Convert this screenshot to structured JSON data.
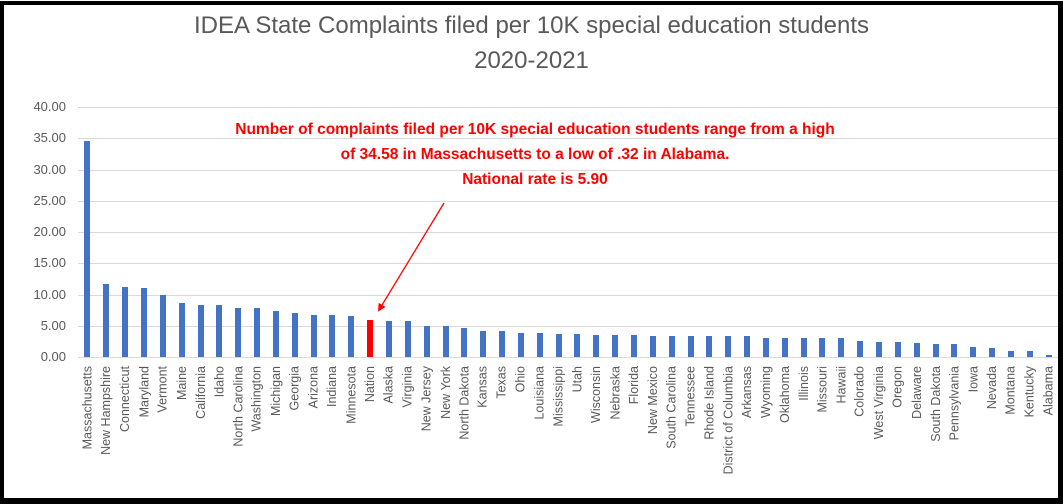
{
  "chart_data": {
    "type": "bar",
    "title": "IDEA State Complaints filed per 10K special education students",
    "subtitle": "2020-2021",
    "xlabel": "",
    "ylabel": "",
    "ylim": [
      0,
      40
    ],
    "yticks": [
      "40.00",
      "35.00",
      "30.00",
      "25.00",
      "20.00",
      "15.00",
      "10.00",
      "5.00",
      "0.00"
    ],
    "grid": true,
    "legend": "none",
    "categories": [
      "Massachusetts",
      "New Hampshire",
      "Connecticut",
      "Maryland",
      "Vermont",
      "Maine",
      "California",
      "Idaho",
      "North Carolina",
      "Washington",
      "Michigan",
      "Georgia",
      "Arizona",
      "Indiana",
      "Minnesota",
      "Nation",
      "Alaska",
      "Virginia",
      "New Jersey",
      "New York",
      "North Dakota",
      "Kansas",
      "Texas",
      "Ohio",
      "Louisiana",
      "Mississippi",
      "Utah",
      "Wisconsin",
      "Nebraska",
      "Florida",
      "New Mexico",
      "South Carolina",
      "Tennessee",
      "Rhode Island",
      "District of Columbia",
      "Arkansas",
      "Wyoming",
      "Oklahoma",
      "Illinois",
      "Missouri",
      "Hawaii",
      "Colorado",
      "West Virginia",
      "Oregon",
      "Delaware",
      "South Dakota",
      "Pennsylvania",
      "Iowa",
      "Nevada",
      "Montana",
      "Kentucky",
      "Alabama"
    ],
    "values": [
      34.58,
      11.66,
      11.18,
      11.0,
      9.9,
      8.6,
      8.4,
      8.4,
      7.8,
      7.8,
      7.3,
      7.0,
      6.7,
      6.7,
      6.5,
      5.9,
      5.7,
      5.7,
      4.9,
      4.9,
      4.7,
      4.2,
      4.2,
      3.9,
      3.9,
      3.75,
      3.75,
      3.6,
      3.6,
      3.6,
      3.4,
      3.3,
      3.3,
      3.3,
      3.3,
      3.3,
      3.1,
      3.1,
      3.1,
      3.0,
      3.0,
      2.6,
      2.4,
      2.4,
      2.3,
      2.1,
      2.1,
      1.6,
      1.5,
      1.0,
      1.0,
      0.32
    ],
    "highlight": {
      "category": "Nation",
      "color": "#ff0000"
    },
    "bar_color": "#4472c4",
    "annotations": [
      {
        "lines": [
          "Number of complaints filed per 10K special education students range from a high",
          "of 34.58 in Massachusetts to a low of .32 in Alabama.",
          "National rate is 5.90"
        ],
        "color": "#ff0000",
        "arrow_to": "Nation"
      }
    ]
  }
}
